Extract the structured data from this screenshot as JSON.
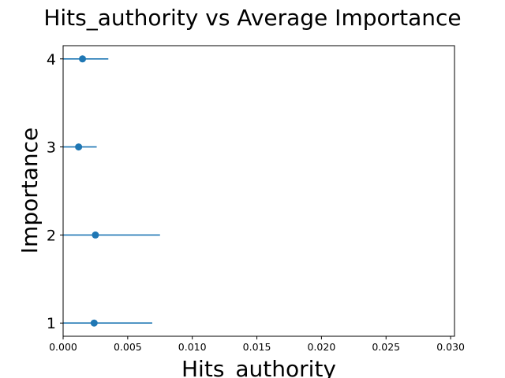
{
  "chart_data": {
    "type": "scatter",
    "title": "Hits_authority vs Average Importance",
    "xlabel": "Hits_authority",
    "ylabel": "Importance",
    "xlim": [
      0.0,
      0.0303
    ],
    "ylim": [
      0.85,
      4.15
    ],
    "x_ticks": [
      "0.000",
      "0.005",
      "0.010",
      "0.015",
      "0.020",
      "0.025",
      "0.030"
    ],
    "y_ticks": [
      "1",
      "2",
      "3",
      "4"
    ],
    "color": "#1f77b4",
    "points": [
      {
        "y": 1,
        "x": 0.0024,
        "xerr": 0.0045
      },
      {
        "y": 2,
        "x": 0.0025,
        "xerr": 0.005
      },
      {
        "y": 3,
        "x": 0.0012,
        "xerr": 0.0014
      },
      {
        "y": 4,
        "x": 0.0015,
        "xerr": 0.002
      }
    ],
    "grid": false,
    "legend": false
  }
}
